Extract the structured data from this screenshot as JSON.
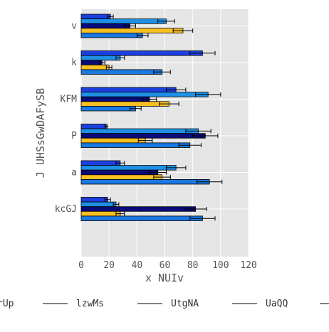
{
  "chart_data": {
    "type": "bar",
    "orientation": "horizontal",
    "title": "",
    "xlabel": "x NUIv",
    "ylabel": "J UHSsGwDAFySB",
    "xlim": [
      0,
      120
    ],
    "xticks": [
      0,
      20,
      40,
      60,
      80,
      100,
      120
    ],
    "categories": [
      "kcGJ",
      "a",
      "P",
      "KFM",
      "k",
      "v"
    ],
    "grid": true,
    "legend_position": "bottom",
    "series": [
      {
        "name": "rUp",
        "color": "#1c3fe0",
        "values": [
          19,
          28,
          18,
          68,
          87,
          21
        ],
        "errors": [
          2,
          3,
          1,
          7,
          9,
          2
        ]
      },
      {
        "name": "lzwMs",
        "color": "#1e90e6",
        "values": [
          25,
          68,
          84,
          91,
          28,
          61
        ],
        "errors": [
          2,
          7,
          9,
          9,
          3,
          6
        ]
      },
      {
        "name": "UtgNA",
        "color": "#0a0a78",
        "values": [
          82,
          55,
          89,
          49,
          15,
          35
        ],
        "errors": [
          8,
          6,
          9,
          5,
          2,
          4
        ]
      },
      {
        "name": "UaQQ",
        "color": "#f8bf20",
        "values": [
          28,
          58,
          46,
          63,
          20,
          73
        ],
        "errors": [
          3,
          6,
          5,
          7,
          2,
          7
        ]
      },
      {
        "name": "",
        "color": "#1a78e0",
        "values": [
          87,
          92,
          78,
          39,
          58,
          44
        ],
        "errors": [
          9,
          9,
          8,
          4,
          6,
          4
        ]
      }
    ]
  }
}
